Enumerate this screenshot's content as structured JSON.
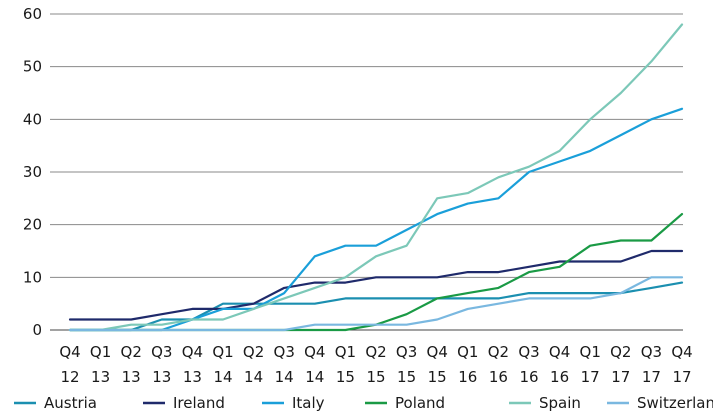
{
  "chart_data": {
    "type": "line",
    "title": "",
    "xlabel": "",
    "ylabel": "",
    "ylim": [
      0,
      60
    ],
    "yticks": [
      0,
      10,
      20,
      30,
      40,
      50,
      60
    ],
    "grid": "horizontal",
    "legend_position": "bottom",
    "categories": [
      {
        "q": "Q4",
        "y": "12"
      },
      {
        "q": "Q1",
        "y": "13"
      },
      {
        "q": "Q2",
        "y": "13"
      },
      {
        "q": "Q3",
        "y": "13"
      },
      {
        "q": "Q4",
        "y": "13"
      },
      {
        "q": "Q1",
        "y": "14"
      },
      {
        "q": "Q2",
        "y": "14"
      },
      {
        "q": "Q3",
        "y": "14"
      },
      {
        "q": "Q4",
        "y": "14"
      },
      {
        "q": "Q1",
        "y": "15"
      },
      {
        "q": "Q2",
        "y": "15"
      },
      {
        "q": "Q3",
        "y": "15"
      },
      {
        "q": "Q4",
        "y": "15"
      },
      {
        "q": "Q1",
        "y": "16"
      },
      {
        "q": "Q2",
        "y": "16"
      },
      {
        "q": "Q3",
        "y": "16"
      },
      {
        "q": "Q4",
        "y": "16"
      },
      {
        "q": "Q1",
        "y": "17"
      },
      {
        "q": "Q2",
        "y": "17"
      },
      {
        "q": "Q3",
        "y": "17"
      },
      {
        "q": "Q4",
        "y": "17"
      }
    ],
    "series": [
      {
        "name": "Austria",
        "color": "#1b8fb0",
        "values": [
          0,
          0,
          0,
          2,
          2,
          5,
          5,
          5,
          5,
          6,
          6,
          6,
          6,
          6,
          6,
          7,
          7,
          7,
          7,
          8,
          9
        ]
      },
      {
        "name": "Ireland",
        "color": "#1f2a6b",
        "values": [
          2,
          2,
          2,
          3,
          4,
          4,
          5,
          8,
          9,
          9,
          10,
          10,
          10,
          11,
          11,
          12,
          13,
          13,
          13,
          15,
          15
        ]
      },
      {
        "name": "Italy",
        "color": "#1a9fd9",
        "values": [
          0,
          0,
          0,
          0,
          2,
          4,
          4,
          7,
          14,
          16,
          16,
          19,
          22,
          24,
          25,
          30,
          32,
          34,
          37,
          40,
          42
        ]
      },
      {
        "name": "Poland",
        "color": "#1a9a45",
        "values": [
          0,
          0,
          0,
          0,
          0,
          0,
          0,
          0,
          0,
          0,
          1,
          3,
          6,
          7,
          8,
          11,
          12,
          16,
          17,
          17,
          22
        ]
      },
      {
        "name": "Spain",
        "color": "#7cc8b8",
        "values": [
          0,
          0,
          1,
          1,
          2,
          2,
          4,
          6,
          8,
          10,
          14,
          16,
          25,
          26,
          29,
          31,
          34,
          40,
          45,
          51,
          58
        ]
      },
      {
        "name": "Switzerland",
        "color": "#7ab8e0",
        "values": [
          0,
          0,
          0,
          0,
          0,
          0,
          0,
          0,
          1,
          1,
          1,
          1,
          2,
          4,
          5,
          6,
          6,
          6,
          7,
          10,
          10
        ]
      }
    ]
  }
}
